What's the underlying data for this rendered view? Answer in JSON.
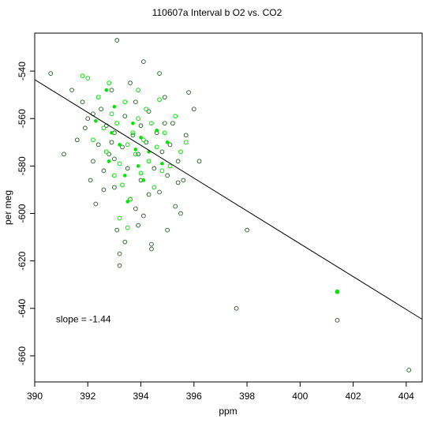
{
  "chart_data": {
    "type": "scatter",
    "title": "110607a   Interval b O2 vs. CO2",
    "xlabel": "ppm",
    "ylabel": "per meg",
    "xlim": [
      390,
      404.6
    ],
    "ylim": [
      -671,
      -524
    ],
    "xticks": [
      390,
      392,
      394,
      396,
      398,
      400,
      402,
      404
    ],
    "yticks": [
      -660,
      -640,
      -620,
      -600,
      -580,
      -560,
      -540
    ],
    "grid": false,
    "colors": {
      "dark": "#1e5a1e",
      "bright": "#00e600",
      "line": "#000000"
    },
    "fit_line": {
      "x": [
        390,
        404.6
      ],
      "y": [
        -543.6,
        -644.6
      ]
    },
    "annotation": {
      "text": "slope =  -1.44",
      "x": 390.8,
      "y": -644.5
    },
    "series": [
      {
        "marker": "open-circle-dark",
        "points": [
          [
            390.6,
            -541
          ],
          [
            391.1,
            -575
          ],
          [
            391.4,
            -548
          ],
          [
            391.6,
            -569
          ],
          [
            391.8,
            -553
          ],
          [
            392.0,
            -560
          ],
          [
            392.1,
            -586
          ],
          [
            392.2,
            -578
          ],
          [
            392.3,
            -596
          ],
          [
            392.4,
            -571
          ],
          [
            392.5,
            -556
          ],
          [
            392.6,
            -582
          ],
          [
            392.7,
            -563
          ],
          [
            392.8,
            -575
          ],
          [
            392.9,
            -548
          ],
          [
            393.0,
            -566
          ],
          [
            393.0,
            -589
          ],
          [
            393.1,
            -527
          ],
          [
            393.1,
            -607
          ],
          [
            393.2,
            -617
          ],
          [
            393.2,
            -622
          ],
          [
            393.3,
            -572
          ],
          [
            393.4,
            -559
          ],
          [
            393.5,
            -581
          ],
          [
            393.6,
            -545
          ],
          [
            393.6,
            -594
          ],
          [
            393.7,
            -567
          ],
          [
            393.8,
            -553
          ],
          [
            393.9,
            -605
          ],
          [
            393.9,
            -575
          ],
          [
            394.0,
            -563
          ],
          [
            394.0,
            -586
          ],
          [
            394.1,
            -536
          ],
          [
            394.1,
            -601
          ],
          [
            394.2,
            -570
          ],
          [
            394.3,
            -557
          ],
          [
            394.4,
            -613
          ],
          [
            394.4,
            -615
          ],
          [
            394.5,
            -581
          ],
          [
            394.6,
            -566
          ],
          [
            394.7,
            -591
          ],
          [
            394.8,
            -574
          ],
          [
            394.9,
            -551
          ],
          [
            395.0,
            -607
          ],
          [
            395.0,
            -584
          ],
          [
            395.2,
            -562
          ],
          [
            395.3,
            -597
          ],
          [
            395.4,
            -578
          ],
          [
            395.5,
            -600
          ],
          [
            395.6,
            -586
          ],
          [
            395.7,
            -567
          ],
          [
            395.8,
            -549
          ],
          [
            396.0,
            -556
          ],
          [
            396.2,
            -578
          ],
          [
            392.2,
            -558
          ],
          [
            392.6,
            -590
          ],
          [
            393.4,
            -612
          ],
          [
            394.7,
            -541
          ],
          [
            395.1,
            -571
          ],
          [
            393.0,
            -577
          ],
          [
            391.9,
            -564
          ],
          [
            394.3,
            -592
          ],
          [
            393.8,
            -598
          ],
          [
            395.4,
            -587
          ],
          [
            392.9,
            -570
          ],
          [
            394.9,
            -562
          ],
          [
            397.6,
            -640
          ],
          [
            398.0,
            -607
          ],
          [
            401.4,
            -645
          ],
          [
            404.1,
            -666
          ]
        ]
      },
      {
        "marker": "open-circle-bright",
        "points": [
          [
            391.8,
            -542
          ],
          [
            392.0,
            -543
          ],
          [
            392.2,
            -569
          ],
          [
            392.4,
            -551
          ],
          [
            392.6,
            -564
          ],
          [
            392.8,
            -545
          ],
          [
            392.9,
            -558
          ],
          [
            393.1,
            -562
          ],
          [
            393.2,
            -579
          ],
          [
            393.3,
            -588
          ],
          [
            393.4,
            -553
          ],
          [
            393.5,
            -571
          ],
          [
            393.6,
            -594
          ],
          [
            393.7,
            -566
          ],
          [
            393.8,
            -575
          ],
          [
            393.9,
            -548
          ],
          [
            394.0,
            -583
          ],
          [
            394.1,
            -569
          ],
          [
            394.2,
            -556
          ],
          [
            394.3,
            -578
          ],
          [
            394.4,
            -562
          ],
          [
            394.5,
            -589
          ],
          [
            394.6,
            -572
          ],
          [
            394.7,
            -552
          ],
          [
            394.9,
            -566
          ],
          [
            395.1,
            -580
          ],
          [
            395.3,
            -559
          ],
          [
            395.5,
            -574
          ],
          [
            395.7,
            -570
          ],
          [
            393.2,
            -602
          ],
          [
            393.5,
            -606
          ],
          [
            392.7,
            -574
          ],
          [
            393.0,
            -584
          ],
          [
            394.8,
            -582
          ],
          [
            393.9,
            -560
          ],
          [
            401.4,
            -633
          ]
        ]
      },
      {
        "marker": "filled-dot-bright",
        "points": [
          [
            392.3,
            -561
          ],
          [
            392.7,
            -548
          ],
          [
            392.9,
            -566
          ],
          [
            393.2,
            -571
          ],
          [
            393.4,
            -584
          ],
          [
            393.5,
            -595
          ],
          [
            393.7,
            -562
          ],
          [
            393.8,
            -573
          ],
          [
            393.9,
            -580
          ],
          [
            394.0,
            -568
          ],
          [
            394.1,
            -586
          ],
          [
            394.3,
            -574
          ],
          [
            394.6,
            -565
          ],
          [
            394.8,
            -579
          ],
          [
            395.0,
            -570
          ],
          [
            393.0,
            -555
          ],
          [
            392.8,
            -578
          ],
          [
            401.4,
            -633
          ]
        ]
      }
    ]
  }
}
